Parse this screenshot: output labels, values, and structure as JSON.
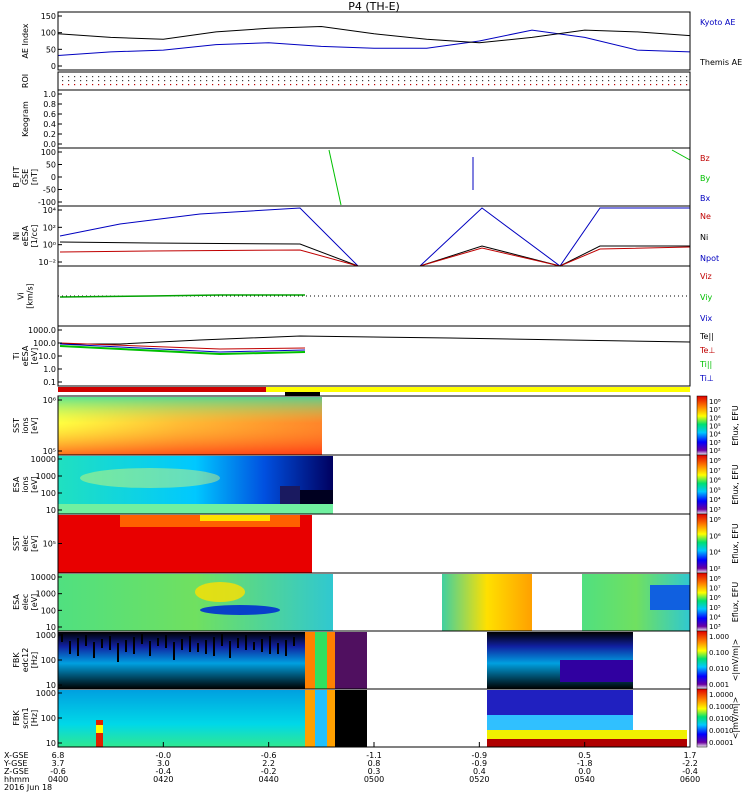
{
  "title": "P4 (TH-E)",
  "date_label": "2016 Jun 18",
  "axis_row_labels": [
    "X-GSE",
    "Y-GSE",
    "Z-GSE",
    "hhmm"
  ],
  "time_ticks": [
    {
      "x": "6.8",
      "y": "3.7",
      "z": "-0.6",
      "t": "0400"
    },
    {
      "x": "-0.0",
      "y": "3.0",
      "z": "-0.4",
      "t": "0420"
    },
    {
      "x": "-0.6",
      "y": "2.2",
      "z": "-0.2",
      "t": "0440"
    },
    {
      "x": "-1.1",
      "y": "0.8",
      "z": "0.3",
      "t": "0500"
    },
    {
      "x": "-0.9",
      "y": "-0.9",
      "z": "0.4",
      "t": "0520"
    },
    {
      "x": "0.5",
      "y": "-1.8",
      "z": "0.0",
      "t": "0540"
    },
    {
      "x": "1.7",
      "y": "-2.2",
      "z": "-0.4",
      "t": "0600"
    }
  ],
  "panels": [
    {
      "id": "ae",
      "ylabel": [
        "AE Index"
      ],
      "ticks": [
        "150",
        "100",
        "50",
        "0"
      ],
      "legend": [
        {
          "text": "Kyoto AE",
          "color": "#0000c0"
        },
        {
          "text": "Themis AE",
          "color": "#000000"
        }
      ]
    },
    {
      "id": "roi",
      "ylabel": [
        "ROI"
      ],
      "ticks": [],
      "legend": []
    },
    {
      "id": "keogram",
      "ylabel": [
        "Keogram"
      ],
      "ticks": [
        "1.0",
        "0.8",
        "0.6",
        "0.4",
        "0.2",
        "0.0"
      ],
      "legend": []
    },
    {
      "id": "bfgm",
      "ylabel": [
        "B_FIT",
        "GSE",
        "[nT]"
      ],
      "ticks": [
        "100",
        "50",
        "0",
        "-50",
        "-100"
      ],
      "legend": [
        {
          "text": "Bz",
          "color": "#c00000"
        },
        {
          "text": "By",
          "color": "#00c000"
        },
        {
          "text": "Bx",
          "color": "#0000c0"
        }
      ]
    },
    {
      "id": "density",
      "ylabel": [
        "Ni",
        "eESA",
        "[1/cc]"
      ],
      "ticks": [
        "10⁴",
        "10²",
        "10⁰",
        "10⁻²"
      ],
      "legend": [
        {
          "text": "Ne",
          "color": "#c00000"
        },
        {
          "text": "Ni",
          "color": "#000000"
        },
        {
          "text": "Npot",
          "color": "#0000c0"
        }
      ]
    },
    {
      "id": "velocity",
      "ylabel": [
        "Vi",
        "[km/s]"
      ],
      "ticks": [],
      "legend": [
        {
          "text": "Viz",
          "color": "#c00000"
        },
        {
          "text": "Viy",
          "color": "#00c000"
        },
        {
          "text": "Vix",
          "color": "#0000c0"
        }
      ]
    },
    {
      "id": "temperature",
      "ylabel": [
        "Ti",
        "eESA",
        "[eV]"
      ],
      "ticks": [
        "1000.0",
        "100.0",
        "10.0",
        "1.0",
        "0.1"
      ],
      "legend": [
        {
          "text": "Te||",
          "color": "#000000"
        },
        {
          "text": "Te⊥",
          "color": "#c00000"
        },
        {
          "text": "Ti||",
          "color": "#00c000"
        },
        {
          "text": "Ti⊥",
          "color": "#0000c0"
        }
      ]
    },
    {
      "id": "sst_ion",
      "ylabel": [
        "SST",
        "ions",
        "[eV]"
      ],
      "ticks": [
        "10⁶",
        "10⁵"
      ],
      "legend": []
    },
    {
      "id": "esa_ion",
      "ylabel": [
        "ESA",
        "ions",
        "[eV]"
      ],
      "ticks": [
        "10000",
        "1000",
        "100",
        "10"
      ],
      "legend": []
    },
    {
      "id": "sst_elec",
      "ylabel": [
        "SST",
        "elec",
        "[eV]"
      ],
      "ticks": [
        "10⁵"
      ],
      "legend": []
    },
    {
      "id": "esa_elec",
      "ylabel": [
        "ESA",
        "elec",
        "[eV]"
      ],
      "ticks": [
        "10000",
        "1000",
        "100",
        "10"
      ],
      "legend": []
    },
    {
      "id": "fbk_e",
      "ylabel": [
        "FBK",
        "edc12",
        "[Hz]"
      ],
      "ticks": [
        "1000",
        "100",
        "10"
      ],
      "legend": []
    },
    {
      "id": "fbk_b",
      "ylabel": [
        "FBK",
        "scm1",
        "[Hz]"
      ],
      "ticks": [
        "1000",
        "100",
        "10"
      ],
      "legend": []
    }
  ],
  "colorbars": [
    {
      "panel": "sst_ion",
      "title": "Eflux, EFU",
      "ticks": [
        "10⁸",
        "10⁷",
        "10⁶",
        "10⁵",
        "10⁴",
        "10³",
        "10²"
      ]
    },
    {
      "panel": "esa_ion",
      "title": "Eflux, EFU",
      "ticks": [
        "10⁸",
        "10⁷",
        "10⁶",
        "10⁵",
        "10⁴",
        "10³"
      ]
    },
    {
      "panel": "sst_elec",
      "title": "Eflux, EFU",
      "ticks": [
        "10⁸",
        "10⁶",
        "10⁴",
        "10²"
      ]
    },
    {
      "panel": "esa_elec",
      "title": "Eflux, EFU",
      "ticks": [
        "10⁸",
        "10⁷",
        "10⁶",
        "10⁵",
        "10⁴",
        "10³"
      ]
    },
    {
      "panel": "fbk_e",
      "title": "<|mV/m|>",
      "ticks": [
        "1.000",
        "0.100",
        "0.010",
        "0.001"
      ]
    },
    {
      "panel": "fbk_b",
      "title": "<|mV/m|>",
      "ticks": [
        "1.0000",
        "0.1000",
        "0.0100",
        "0.0010",
        "0.0001"
      ]
    }
  ],
  "chart_data": {
    "type": "line",
    "title": "P4 (TH-E)",
    "x_unit": "hhmm",
    "x_range": [
      "0400",
      "0600"
    ],
    "series": [
      {
        "name": "Kyoto AE",
        "panel": "ae",
        "color": "#0000c0",
        "x": [
          0,
          10,
          20,
          30,
          40,
          50,
          60,
          70,
          80,
          90,
          100,
          110,
          120
        ],
        "y": [
          40,
          50,
          55,
          70,
          75,
          65,
          60,
          60,
          80,
          110,
          90,
          55,
          50
        ]
      },
      {
        "name": "Themis AE",
        "panel": "ae",
        "color": "#000000",
        "x": [
          0,
          10,
          20,
          30,
          40,
          50,
          60,
          70,
          80,
          90,
          100,
          110,
          120
        ],
        "y": [
          100,
          90,
          85,
          105,
          115,
          120,
          100,
          85,
          75,
          90,
          110,
          105,
          95
        ]
      }
    ]
  }
}
